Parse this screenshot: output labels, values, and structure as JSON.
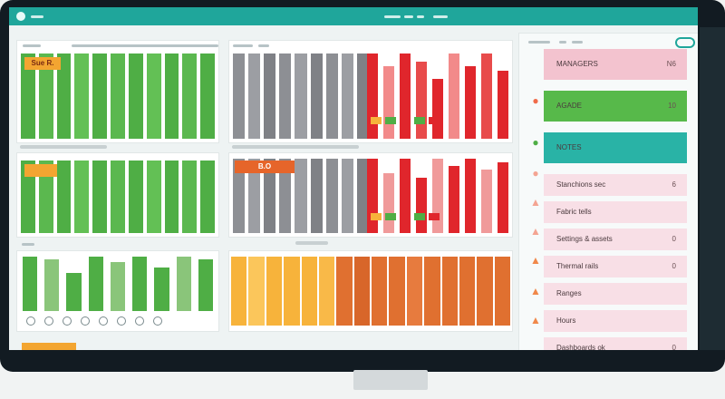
{
  "colors": {
    "accent": "#1fa69b",
    "bezel": "#121b22",
    "green_bar": "#4fae45",
    "gray_bar": "#8d8f94",
    "red_bar": "#e0262c",
    "orange_bar": "#e07030",
    "yellow_bar": "#f7b33b",
    "pink_row": "#f8dfe6"
  },
  "panels": {
    "green_top": {
      "tag": "Sue R."
    },
    "gray_bottom": {
      "tag": "B.O"
    },
    "green_mini": {
      "icons": [
        "circle-icon",
        "circle-icon",
        "circle-icon",
        "circle-icon",
        "circle-icon",
        "circle-icon",
        "circle-icon",
        "circle-icon"
      ]
    }
  },
  "tasks": [
    {
      "label": "MANAGERS",
      "value": "N6"
    },
    {
      "label": "AGADE",
      "value": "10"
    },
    {
      "label": "NOTES",
      "value": ""
    },
    {
      "label": "Stanchions sec",
      "value": "6"
    },
    {
      "label": "Fabric tells",
      "value": ""
    },
    {
      "label": "Settings & assets",
      "value": "0"
    },
    {
      "label": "Thermal rails",
      "value": "0"
    },
    {
      "label": "Ranges",
      "value": ""
    },
    {
      "label": "Hours",
      "value": ""
    },
    {
      "label": "Dashboards ok",
      "value": "0"
    }
  ]
}
